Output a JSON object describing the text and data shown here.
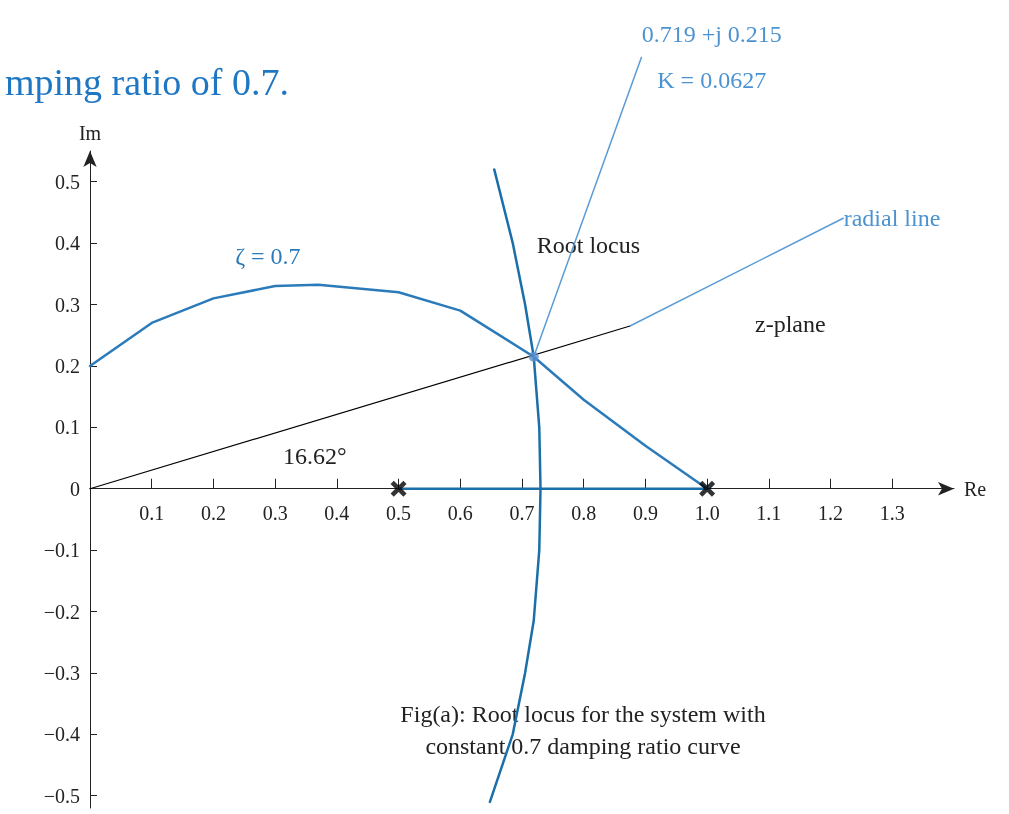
{
  "chart_data": {
    "type": "line",
    "title": "mping ratio of 0.7.",
    "xlabel": "Re",
    "ylabel": "Im",
    "xlim": [
      0,
      1.4
    ],
    "ylim": [
      -0.52,
      0.55
    ],
    "xticks": [
      0.1,
      0.2,
      0.3,
      0.4,
      0.5,
      0.6,
      0.7,
      0.8,
      0.9,
      {
        "value": 1.0,
        "label": "1.0"
      },
      1.1,
      1.2,
      1.3
    ],
    "yticks": [
      {
        "value": -0.5,
        "label": "−0.5"
      },
      {
        "value": -0.4,
        "label": "−0.4"
      },
      {
        "value": -0.3,
        "label": "−0.3"
      },
      {
        "value": -0.2,
        "label": "−0.2"
      },
      {
        "value": -0.1,
        "label": "−0.1"
      },
      0,
      0.1,
      0.2,
      0.3,
      0.4,
      0.5
    ],
    "grid": false,
    "legend": false,
    "series": [
      {
        "name": "ζ = 0.7",
        "color": "#2b7bba",
        "x": [
          0,
          0.1,
          0.2,
          0.3,
          0.37,
          0.5,
          0.6,
          0.719,
          0.8,
          0.9,
          1.0
        ],
        "values": [
          0.2,
          0.27,
          0.31,
          0.33,
          0.332,
          0.32,
          0.29,
          0.215,
          0.145,
          0.07,
          0
        ]
      },
      {
        "name": "Root locus",
        "color": "#1a6fa8",
        "x": [
          0.648,
          0.685,
          0.705,
          0.719,
          0.728,
          0.73,
          0.728,
          0.719,
          0.705,
          0.685,
          0.655
        ],
        "values": [
          -0.51,
          -0.4,
          -0.3,
          -0.215,
          -0.1,
          0,
          0.1,
          0.215,
          0.3,
          0.4,
          0.52
        ]
      },
      {
        "color": "#1a6fa8",
        "x": [
          0.5,
          1.0
        ],
        "values": [
          0,
          0
        ]
      },
      {
        "color": "#000000",
        "x": [
          0,
          0.875
        ],
        "values": [
          0,
          0.265
        ]
      },
      {
        "type": "scatter",
        "marker": "cross",
        "color": "#000000",
        "x": [
          0.5,
          1.0
        ],
        "values": [
          0,
          0
        ]
      },
      {
        "type": "scatter",
        "marker": "circle",
        "color": "#5b8fd0",
        "x": [
          0.719
        ],
        "values": [
          0.215
        ]
      }
    ],
    "annotations": [
      "z-plane",
      "16.62°",
      "Fig(a): Root locus for the system with\nconstant 0.7 damping ratio curve",
      {
        "text": "0.719 +j 0.215\nK = 0.0627",
        "x": 0.719,
        "y": 0.215
      },
      {
        "text": "radial line",
        "x": 0.875,
        "y": 0.265
      }
    ]
  }
}
